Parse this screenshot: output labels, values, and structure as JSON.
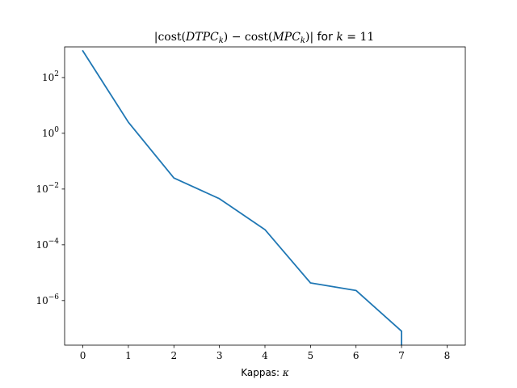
{
  "chart_data": {
    "type": "line",
    "title": {
      "bar_left": "|",
      "cost1": "cost",
      "open1": "(",
      "dtpc": "DTPC",
      "sub1": "k",
      "close1": ")",
      "minus": " − ",
      "cost2": "cost",
      "open2": "(",
      "mpc": "MPC",
      "sub2": "k",
      "close2": ")",
      "bar_right": "|",
      "for_text": " for ",
      "k_var": "k",
      "eq_val": " = 11"
    },
    "xlabel": {
      "text": "Kappas: ",
      "symbol": "κ"
    },
    "ylabel": "",
    "x_scale": "linear",
    "y_scale": "log",
    "xlim": [
      -0.4,
      8.4
    ],
    "ylim_log10": [
      -7.6,
      3.1
    ],
    "grid": false,
    "x_ticks": [
      {
        "value": 0,
        "label": "0"
      },
      {
        "value": 1,
        "label": "1"
      },
      {
        "value": 2,
        "label": "2"
      },
      {
        "value": 3,
        "label": "3"
      },
      {
        "value": 4,
        "label": "4"
      },
      {
        "value": 5,
        "label": "5"
      },
      {
        "value": 6,
        "label": "6"
      },
      {
        "value": 7,
        "label": "7"
      },
      {
        "value": 8,
        "label": "8"
      }
    ],
    "y_ticks": [
      {
        "exp": 2,
        "base": "10",
        "sup": "2"
      },
      {
        "exp": 0,
        "base": "10",
        "sup": "0"
      },
      {
        "exp": -2,
        "base": "10",
        "sup": "−2"
      },
      {
        "exp": -4,
        "base": "10",
        "sup": "−4"
      },
      {
        "exp": -6,
        "base": "10",
        "sup": "−6"
      }
    ],
    "series": [
      {
        "color": "#1f77b4",
        "x": [
          0,
          1,
          2,
          3,
          4,
          5,
          6,
          7,
          7
        ],
        "y": [
          900,
          2.5,
          0.025,
          0.0045,
          0.00035,
          4.3e-06,
          2.3e-06,
          8e-08,
          1e-08
        ]
      }
    ]
  }
}
